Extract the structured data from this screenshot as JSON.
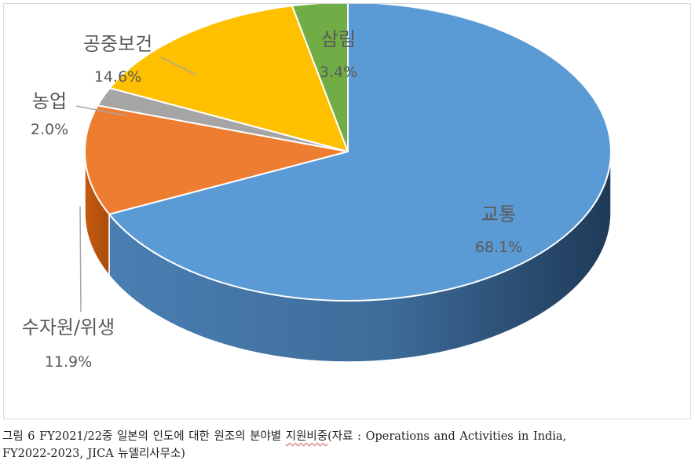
{
  "chart_data": {
    "type": "pie",
    "style": "3d",
    "slices": [
      {
        "label": "교통",
        "value": 68.1,
        "value_label": "68.1%",
        "color": "#5b9bd5"
      },
      {
        "label": "수자원/위생",
        "value": 11.9,
        "value_label": "11.9%",
        "color": "#ed7d31"
      },
      {
        "label": "농업",
        "value": 2.0,
        "value_label": "2.0%",
        "color": "#a5a5a5"
      },
      {
        "label": "공중보건",
        "value": 14.6,
        "value_label": "14.6%",
        "color": "#ffc000"
      },
      {
        "label": "삼림",
        "value": 3.4,
        "value_label": "3.4%",
        "color": "#70ad47"
      }
    ]
  },
  "caption": {
    "line1_main": "그림 6 FY2021/22중 일본의 인도에 대한 원조의 분야별 ",
    "line1_underlined": "지원비중",
    "line1_rest": "(자료 : Operations and Activities in India,",
    "line2": "FY2022-2023, JICA 뉴델리사무소)"
  }
}
